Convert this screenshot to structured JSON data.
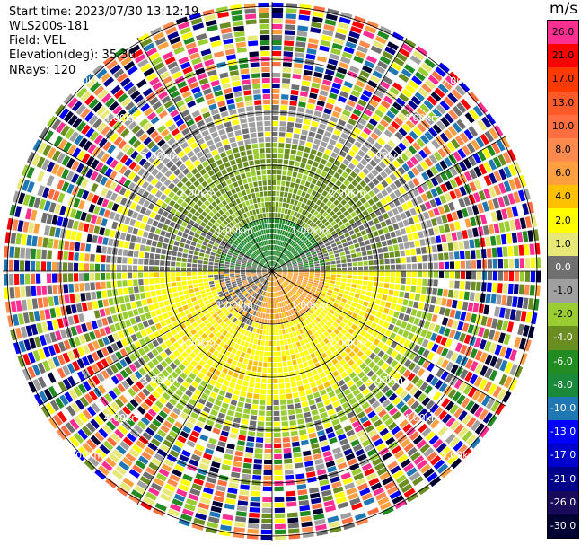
{
  "header": {
    "start_time": "Start time: 2023/07/30 13:12:19",
    "instrument": "WLS200s-181",
    "field": "Field: VEL",
    "elevation": "Elevation(deg): 35.30",
    "nrays": "NRays: 120"
  },
  "colorbar": {
    "unit": "m/s",
    "labels": [
      "26.0",
      "21.0",
      "17.0",
      "13.0",
      "10.0",
      "8.0",
      "6.0",
      "4.0",
      "2.0",
      "1.0",
      "0.0",
      "-1.0",
      "-2.0",
      "-4.0",
      "-6.0",
      "-8.0",
      "-10.0",
      "-13.0",
      "-17.0",
      "-21.0",
      "-26.0",
      "-30.0"
    ],
    "colors": [
      "#ff2f92",
      "#ff0000",
      "#ff3a00",
      "#ff5a28",
      "#ff6e40",
      "#ff8a50",
      "#ffa040",
      "#ffc000",
      "#ffff00",
      "#e8e878",
      "#707070",
      "#a0a0a0",
      "#9acd32",
      "#6b8e23",
      "#228b22",
      "#1a8a3a",
      "#1f77b4",
      "#0000ff",
      "#0000cd",
      "#00008b",
      "#1a0a5a",
      "#000033"
    ]
  },
  "range_rings": [
    "1.00km",
    "2.00km",
    "3.00km",
    "4.00km",
    "5.00km"
  ]
}
